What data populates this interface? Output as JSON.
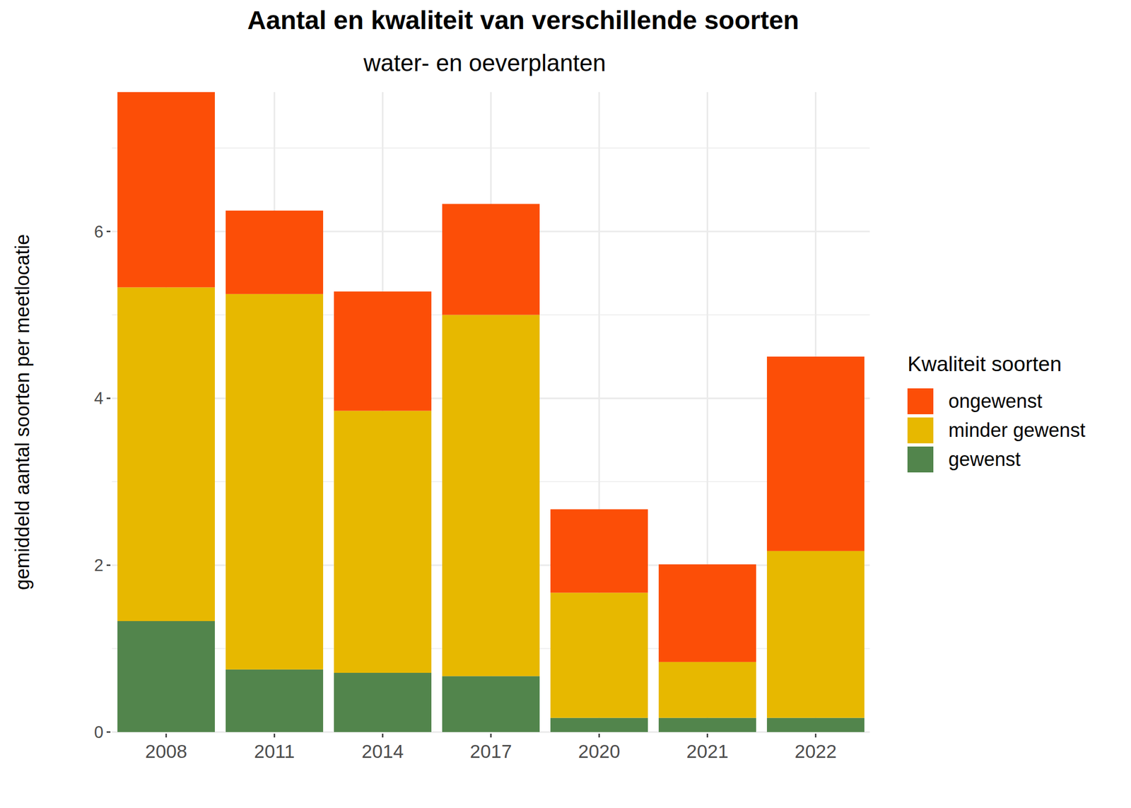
{
  "chart_data": {
    "type": "bar",
    "stacked": true,
    "title": "Aantal en kwaliteit van verschillende soorten",
    "subtitle": "water- en oeverplanten",
    "y_label": "gemiddeld aantal soorten per meetlocatie",
    "legend_title": "Kwaliteit soorten",
    "legend": "right",
    "grid": true,
    "categories": [
      "2008",
      "2011",
      "2014",
      "2017",
      "2020",
      "2021",
      "2022"
    ],
    "series": [
      {
        "name": "gewenst",
        "color": "#52854c",
        "values": [
          1.33,
          0.75,
          0.71,
          0.67,
          0.17,
          0.17,
          0.17
        ]
      },
      {
        "name": "minder gewenst",
        "color": "#e7b800",
        "values": [
          4.0,
          4.5,
          3.14,
          4.33,
          1.5,
          0.67,
          2.0
        ]
      },
      {
        "name": "ongewenst",
        "color": "#fc4e07",
        "values": [
          2.34,
          1.0,
          1.43,
          1.33,
          1.0,
          1.17,
          2.33
        ]
      }
    ],
    "ylim": [
      0,
      7.67
    ],
    "yticks": [
      0,
      2,
      4,
      6
    ]
  }
}
